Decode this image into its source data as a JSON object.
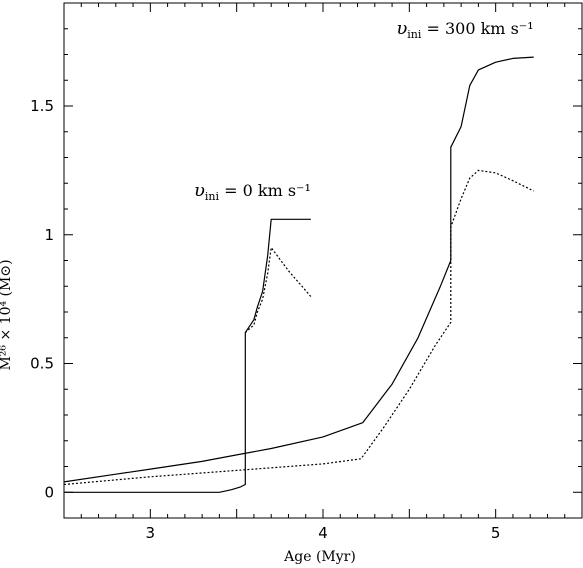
{
  "colors": {
    "background": "#ffffff",
    "axes": "#000000",
    "series": "#000000"
  },
  "chart_data": {
    "type": "line",
    "title": "",
    "xlabel": "Age (Myr)",
    "ylabel": "M²⁶ × 10⁴ (M⊙)",
    "xlim": [
      2.5,
      5.5
    ],
    "ylim": [
      -0.1,
      1.9
    ],
    "xticks": [
      3,
      4,
      5
    ],
    "xtick_labels": [
      "3",
      "4",
      "5"
    ],
    "yticks": [
      0,
      0.5,
      1,
      1.5
    ],
    "ytick_labels": [
      "0",
      "0.5",
      "1",
      "1.5"
    ],
    "grid": false,
    "legend": "none",
    "series": [
      {
        "style": "solid",
        "points": [
          [
            2.5,
            0.0
          ],
          [
            3.4,
            0.0
          ],
          [
            3.47,
            0.01
          ],
          [
            3.52,
            0.02
          ],
          [
            3.55,
            0.03
          ],
          [
            3.55,
            0.62
          ],
          [
            3.6,
            0.67
          ],
          [
            3.62,
            0.72
          ],
          [
            3.65,
            0.78
          ],
          [
            3.68,
            0.92
          ],
          [
            3.7,
            1.06
          ],
          [
            3.93,
            1.06
          ]
        ]
      },
      {
        "style": "dotted",
        "points": [
          [
            3.55,
            0.62
          ],
          [
            3.6,
            0.65
          ],
          [
            3.62,
            0.7
          ],
          [
            3.65,
            0.75
          ],
          [
            3.68,
            0.85
          ],
          [
            3.7,
            0.95
          ],
          [
            3.8,
            0.86
          ],
          [
            3.93,
            0.76
          ]
        ]
      },
      {
        "style": "solid",
        "points": [
          [
            2.5,
            0.04
          ],
          [
            2.8,
            0.07
          ],
          [
            3.0,
            0.09
          ],
          [
            3.3,
            0.12
          ],
          [
            3.5,
            0.145
          ],
          [
            3.7,
            0.17
          ],
          [
            4.0,
            0.215
          ],
          [
            4.23,
            0.27
          ],
          [
            4.4,
            0.42
          ],
          [
            4.55,
            0.6
          ],
          [
            4.68,
            0.8
          ],
          [
            4.74,
            0.9
          ],
          [
            4.74,
            1.34
          ],
          [
            4.8,
            1.42
          ],
          [
            4.85,
            1.58
          ],
          [
            4.9,
            1.64
          ],
          [
            5.0,
            1.67
          ],
          [
            5.1,
            1.685
          ],
          [
            5.22,
            1.69
          ]
        ]
      },
      {
        "style": "dotted",
        "points": [
          [
            2.5,
            0.03
          ],
          [
            3.0,
            0.06
          ],
          [
            3.5,
            0.085
          ],
          [
            4.0,
            0.11
          ],
          [
            4.22,
            0.13
          ],
          [
            4.35,
            0.25
          ],
          [
            4.5,
            0.4
          ],
          [
            4.65,
            0.57
          ],
          [
            4.74,
            0.66
          ],
          [
            4.74,
            1.03
          ],
          [
            4.8,
            1.14
          ],
          [
            4.85,
            1.22
          ],
          [
            4.9,
            1.25
          ],
          [
            5.0,
            1.24
          ],
          [
            5.1,
            1.21
          ],
          [
            5.22,
            1.17
          ]
        ]
      }
    ],
    "annotations": [
      {
        "text": "υ",
        "sub": "ini",
        "rest": " = 0 km s⁻¹",
        "x": 3.93,
        "y": 1.15
      },
      {
        "text": "υ",
        "sub": "ini",
        "rest": " = 300 km s⁻¹",
        "x": 5.22,
        "y": 1.78
      }
    ]
  }
}
